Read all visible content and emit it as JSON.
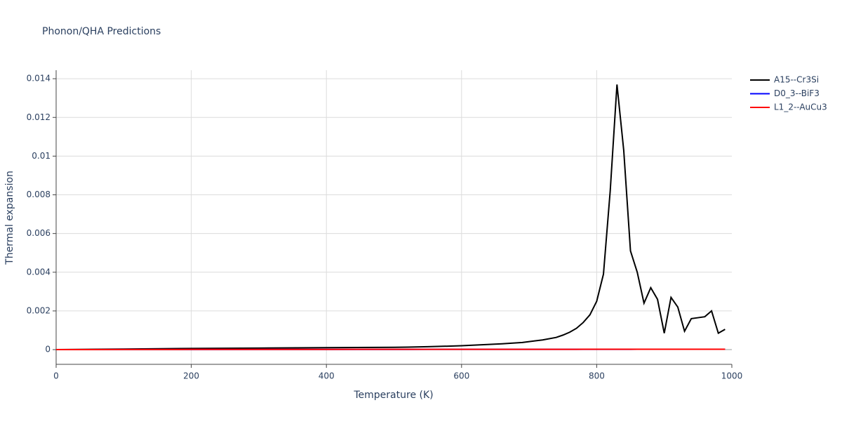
{
  "chart_data": {
    "type": "line",
    "title": "Phonon/QHA Predictions",
    "x_label": "Temperature (K)",
    "y_label": "Thermal expansion",
    "x": [
      0,
      100,
      200,
      300,
      400,
      500,
      520,
      550,
      600,
      630,
      660,
      690,
      720,
      740,
      750,
      760,
      770,
      780,
      790,
      800,
      810,
      820,
      830,
      840,
      850,
      860,
      870,
      880,
      890,
      900,
      910,
      920,
      930,
      940,
      950,
      960,
      970,
      980,
      990
    ],
    "series": [
      {
        "name": "A15--Cr3Si",
        "color": "#000000",
        "values": [
          0,
          3e-05,
          6e-05,
          8e-05,
          0.0001,
          0.00012,
          0.00013,
          0.00015,
          0.0002,
          0.00025,
          0.0003,
          0.00037,
          0.0005,
          0.00063,
          0.00075,
          0.0009,
          0.0011,
          0.0014,
          0.0018,
          0.0025,
          0.0039,
          0.0082,
          0.0137,
          0.0103,
          0.0051,
          0.004,
          0.0024,
          0.0032,
          0.0026,
          0.00085,
          0.0027,
          0.0022,
          0.00095,
          0.0016,
          0.00165,
          0.0017,
          0.002,
          0.00085,
          0.00105
        ]
      },
      {
        "name": "D0_3--BiF3",
        "color": "#0000ff",
        "values": [
          0,
          5e-06,
          8e-06,
          1e-05,
          1.2e-05,
          1.3e-05,
          1.3e-05,
          1.4e-05,
          1.4e-05,
          1.5e-05,
          1.5e-05,
          1.5e-05,
          1.6e-05,
          1.6e-05,
          1.6e-05,
          1.6e-05,
          1.6e-05,
          1.6e-05,
          1.7e-05,
          1.7e-05,
          1.7e-05,
          1.7e-05,
          1.7e-05,
          1.7e-05,
          1.7e-05,
          1.8e-05,
          1.8e-05,
          1.8e-05,
          1.8e-05,
          1.8e-05,
          1.8e-05,
          1.8e-05,
          1.8e-05,
          1.8e-05,
          1.9e-05,
          1.9e-05,
          1.9e-05,
          1.9e-05,
          1.9e-05
        ]
      },
      {
        "name": "L1_2--AuCu3",
        "color": "#ff0000",
        "values": [
          0,
          6e-06,
          9e-06,
          1.1e-05,
          1.3e-05,
          1.4e-05,
          1.4e-05,
          1.5e-05,
          1.5e-05,
          1.6e-05,
          1.6e-05,
          1.6e-05,
          1.7e-05,
          1.7e-05,
          1.7e-05,
          1.7e-05,
          1.7e-05,
          1.8e-05,
          1.8e-05,
          1.8e-05,
          1.8e-05,
          1.8e-05,
          1.8e-05,
          1.9e-05,
          1.9e-05,
          1.9e-05,
          1.9e-05,
          1.9e-05,
          1.9e-05,
          2e-05,
          2e-05,
          2e-05,
          2e-05,
          2e-05,
          2e-05,
          2e-05,
          2e-05,
          2e-05,
          2e-05
        ]
      }
    ],
    "xlim": [
      0,
      1000
    ],
    "xticks": [
      0,
      200,
      400,
      600,
      800,
      1000
    ],
    "ylim": [
      -0.00076,
      0.01444
    ],
    "yticks": [
      0,
      0.002,
      0.004,
      0.006,
      0.008,
      0.01,
      0.012,
      0.014
    ],
    "grid": true,
    "legend": "right"
  }
}
